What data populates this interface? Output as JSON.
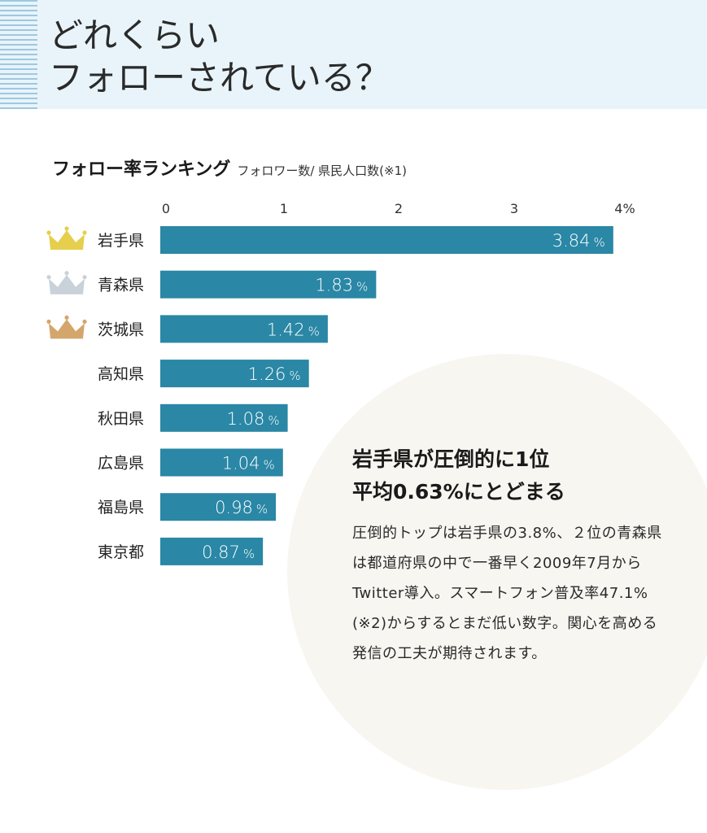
{
  "header": {
    "title_line1": "どれくらい",
    "title_line2": "フォローされている？"
  },
  "ranking": {
    "heading": "フォロー率ランキング",
    "subheading": "フォロワー数/ 県民人口数(※1)"
  },
  "chart_data": {
    "type": "bar",
    "orientation": "horizontal",
    "categories": [
      "岩手県",
      "青森県",
      "茨城県",
      "高知県",
      "秋田県",
      "広島県",
      "福島県",
      "東京都"
    ],
    "values": [
      3.84,
      1.83,
      1.42,
      1.26,
      1.08,
      1.04,
      0.98,
      0.87
    ],
    "value_labels": [
      "3.84",
      "1.83",
      "1.42",
      "1.26",
      "1.08",
      "1.04",
      "0.98",
      "0.87"
    ],
    "value_unit": "%",
    "x_ticks": [
      "0",
      "1",
      "2",
      "3",
      "4%"
    ],
    "xlim": [
      0,
      4
    ],
    "title": "",
    "xlabel": "",
    "ylabel": "",
    "crowns": [
      "gold",
      "silver",
      "bronze"
    ],
    "colors": {
      "bar": "#2a87a5",
      "gold": "#e6cf4c",
      "silver": "#c9d1d9",
      "bronze": "#d4a66c"
    }
  },
  "callout": {
    "title_line1": "岩手県が圧倒的に1位",
    "title_line2": "平均0.63%にとどまる",
    "body": "圧倒的トップは岩手県の3.8%、２位の青森県は都道府県の中で一番早く2009年7月からTwitter導入。スマートフォン普及率47.1%(※2)からするとまだ低い数字。関心を高める発信の工夫が期待されます。"
  }
}
